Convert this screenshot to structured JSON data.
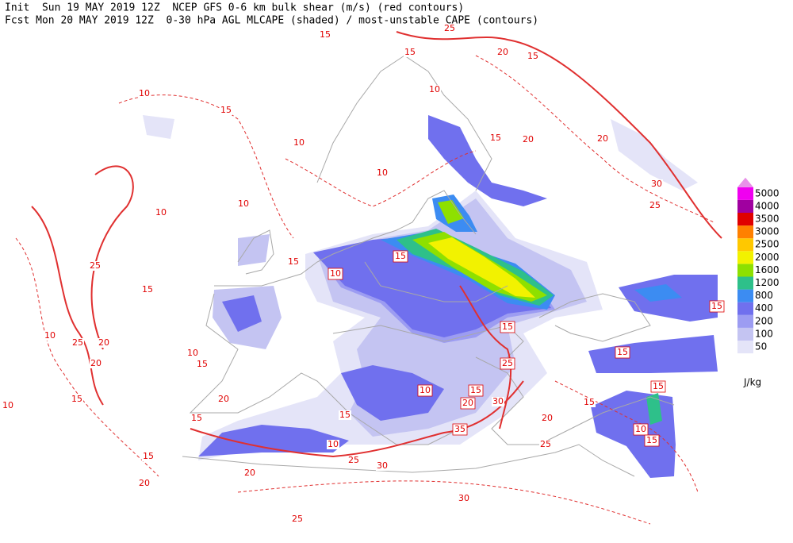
{
  "header": {
    "line1": "Init  Sun 19 MAY 2019 12Z  NCEP GFS 0-6 km bulk shear (m/s) (red contours)",
    "line2": "Fcst Mon 20 MAY 2019 12Z  0-30 hPa AGL MLCAPE (shaded) / most-unstable CAPE (contours)"
  },
  "legend": {
    "levels": [
      50,
      100,
      200,
      400,
      800,
      1200,
      1600,
      2000,
      2500,
      3000,
      3500,
      4000,
      5000
    ],
    "colors": [
      "#e4e4f8",
      "#c4c4f2",
      "#9c9cf2",
      "#7070ee",
      "#3c8cf2",
      "#2ec08a",
      "#8ee000",
      "#f2f200",
      "#ffc800",
      "#ff8000",
      "#e00000",
      "#a000a0",
      "#f000f0"
    ],
    "over_color": "#e890e8",
    "unit": "J/kg"
  },
  "contour_labels": [
    {
      "value": 15,
      "boxed": false
    },
    {
      "value": 25,
      "boxed": false
    },
    {
      "value": 15,
      "boxed": false
    },
    {
      "value": 20,
      "boxed": false
    },
    {
      "value": 15,
      "boxed": false
    },
    {
      "value": 15,
      "boxed": false
    },
    {
      "value": 10,
      "boxed": false
    },
    {
      "value": 10,
      "boxed": false
    },
    {
      "value": 15,
      "boxed": false
    },
    {
      "value": 20,
      "boxed": false
    },
    {
      "value": 20,
      "boxed": false
    },
    {
      "value": 30,
      "boxed": false
    },
    {
      "value": 25,
      "boxed": false
    },
    {
      "value": 10,
      "boxed": false
    },
    {
      "value": 10,
      "boxed": false
    },
    {
      "value": 10,
      "boxed": false
    },
    {
      "value": 10,
      "boxed": false
    },
    {
      "value": 15,
      "boxed": false
    },
    {
      "value": 10,
      "boxed": true
    },
    {
      "value": 15,
      "boxed": true
    },
    {
      "value": 15,
      "boxed": false
    },
    {
      "value": 25,
      "boxed": false
    },
    {
      "value": 10,
      "boxed": false
    },
    {
      "value": 25,
      "boxed": false
    },
    {
      "value": 20,
      "boxed": false
    },
    {
      "value": 20,
      "boxed": false
    },
    {
      "value": 15,
      "boxed": true
    },
    {
      "value": 15,
      "boxed": true
    },
    {
      "value": 15,
      "boxed": true
    },
    {
      "value": 25,
      "boxed": true
    },
    {
      "value": 10,
      "boxed": true
    },
    {
      "value": 15,
      "boxed": true
    },
    {
      "value": 20,
      "boxed": true
    },
    {
      "value": 30,
      "boxed": false
    },
    {
      "value": 20,
      "boxed": false
    },
    {
      "value": 35,
      "boxed": true
    },
    {
      "value": 15,
      "boxed": true
    },
    {
      "value": 10,
      "boxed": true
    },
    {
      "value": 15,
      "boxed": true
    },
    {
      "value": 15,
      "boxed": false
    },
    {
      "value": 25,
      "boxed": false
    },
    {
      "value": 15,
      "boxed": false
    },
    {
      "value": 10,
      "boxed": false
    },
    {
      "value": 25,
      "boxed": false
    },
    {
      "value": 30,
      "boxed": false
    },
    {
      "value": 20,
      "boxed": false
    },
    {
      "value": 15,
      "boxed": false
    },
    {
      "value": 20,
      "boxed": false
    },
    {
      "value": 30,
      "boxed": false
    },
    {
      "value": 25,
      "boxed": false
    },
    {
      "value": 10,
      "boxed": false
    },
    {
      "value": 15,
      "boxed": false
    },
    {
      "value": 20,
      "boxed": false
    },
    {
      "value": 15,
      "boxed": false
    },
    {
      "value": 10,
      "boxed": false
    },
    {
      "value": 15,
      "boxed": false
    }
  ]
}
